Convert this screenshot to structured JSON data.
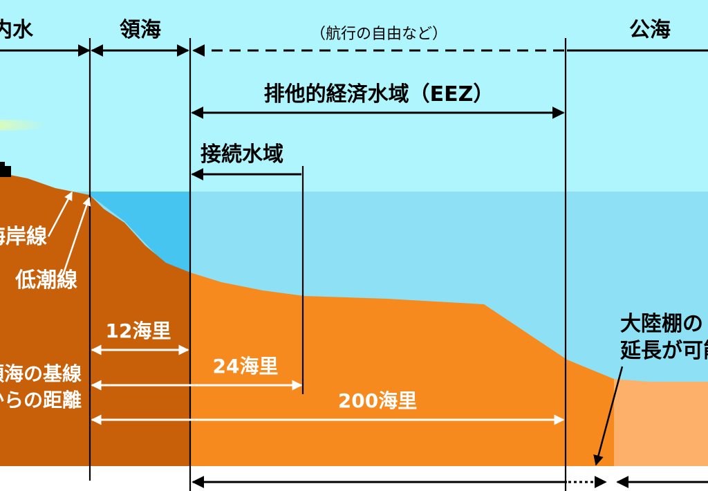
{
  "zones": {
    "internal_waters": "内水",
    "territorial_sea": "領海",
    "freedom_note": "（航行の自由など）",
    "high_seas": "公海",
    "eez": "排他的経済水域（EEZ）",
    "contiguous_zone": "接続水域"
  },
  "shore": {
    "coastline": "海岸線",
    "low_water_line": "低潮線"
  },
  "distances": {
    "nm12": "12海里",
    "nm24": "24海里",
    "nm200": "200海里",
    "baseline_line1": "領海の基線",
    "baseline_line2": "からの距離"
  },
  "shelf": {
    "line1": "大陸棚の",
    "line2": "延長が可能"
  },
  "colors": {
    "sky": "#aef5fd",
    "sea": "#8ee1f5",
    "sea_dark": "#45c5f0",
    "land_brown": "#c8600a",
    "seabed_orange": "#f68a1e",
    "shelf_light": "#fdb06a"
  }
}
